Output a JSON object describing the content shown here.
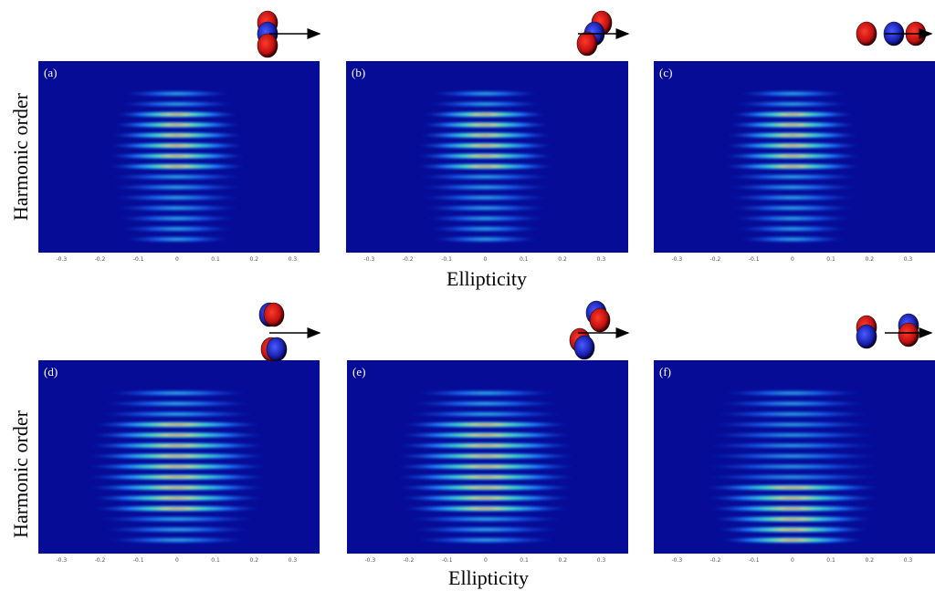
{
  "figure": {
    "y_label": "Harmonic order",
    "x_label": "Ellipticity",
    "xlim": [
      -0.36,
      0.37
    ],
    "xticks": [
      -0.3,
      -0.2,
      -0.1,
      0,
      0.1,
      0.2,
      0.3
    ],
    "panels": [
      {
        "label": "(a)"
      },
      {
        "label": "(b)"
      },
      {
        "label": "(c)"
      },
      {
        "label": "(d)"
      },
      {
        "label": "(e)"
      },
      {
        "label": "(f)"
      }
    ]
  }
}
